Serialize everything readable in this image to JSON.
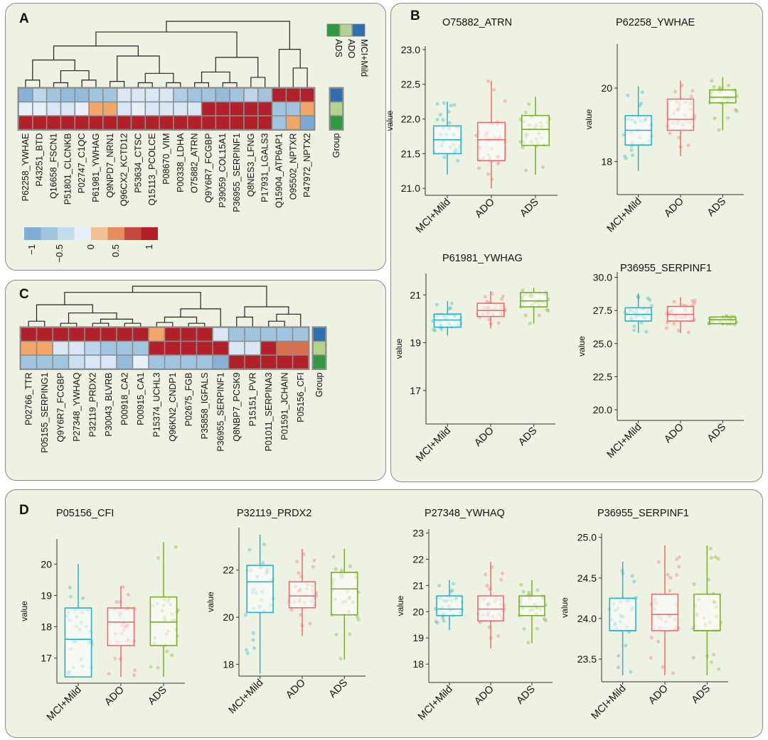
{
  "panels": {
    "a": "A",
    "b": "B",
    "c": "C",
    "d": "D"
  },
  "colors": {
    "mci": "#23b3c6",
    "ado": "#ee6b6b",
    "ads": "#79ad2a",
    "grp_mci": "#2e6fb3",
    "grp_ado": "#b4d48e",
    "grp_ads": "#2f9a3f"
  },
  "legend": {
    "mci": "MCI+Mild",
    "ado": "ADO",
    "ads": "ADS"
  },
  "chart_data": [
    {
      "id": "heatA",
      "type": "heatmap",
      "group_label": "Group",
      "columns": [
        "P62258_YWHAE",
        "P43251_BTD",
        "Q16658_FSCN1",
        "P51801_CLCNKB",
        "P02747_C1QC",
        "P61981_YWHAG",
        "Q9NPD7_NRN1",
        "Q96CX2_KCTD12",
        "P53634_CTSC",
        "Q15113_PCOLCE",
        "P08670_VIM",
        "P00338_LDHA",
        "O75882_ATRN",
        "Q9Y6R7_FCGBP",
        "P39059_COL15A1",
        "P36955_SERPINF1",
        "Q8NES3_LFNG",
        "P17931_LGALS3",
        "Q15904_ATP6AP1",
        "O95502_NPTXR",
        "P47972_NPTX2"
      ],
      "rows": [
        "MCI+Mild",
        "ADO",
        "ADS"
      ],
      "values": [
        [
          -0.8,
          -0.4,
          -0.6,
          -0.7,
          -0.7,
          -0.6,
          -0.6,
          -0.2,
          -0.2,
          -0.2,
          -0.2,
          -0.5,
          -0.6,
          -0.6,
          -0.7,
          -0.6,
          -0.4,
          -0.6,
          1,
          1,
          1
        ],
        [
          -0.1,
          -0.1,
          -0.2,
          -0.2,
          -0.1,
          0.5,
          0.5,
          -0.2,
          -0.1,
          -0.2,
          -0.2,
          -0.2,
          -0.2,
          1,
          1,
          1,
          1,
          1,
          -0.6,
          -0.6,
          0.5
        ],
        [
          1,
          1,
          1,
          1,
          1,
          1,
          1,
          1,
          1,
          1,
          1,
          1,
          1,
          1,
          1,
          1,
          1,
          1,
          -0.6,
          0.5,
          -0.9
        ]
      ],
      "colorbar": {
        "ticks": [
          "−1",
          "−0.5",
          "0",
          "0.5",
          "1"
        ]
      }
    },
    {
      "id": "heatC",
      "type": "heatmap",
      "group_label": "Group",
      "columns": [
        "P02766_TTR",
        "P05155_SERPING1",
        "Q9Y6R7_FCGBP",
        "P27348_YWHAQ",
        "P32119_PRDX2",
        "P30043_BLVRB",
        "P00918_CA2",
        "P00915_CA1",
        "P15374_UCHL3",
        "Q96KN2_CNDP1",
        "P02675_FGB",
        "P35858_IGFALS",
        "P36955_SERPINF1",
        "Q8NBP7_PCSK9",
        "P15151_PVR",
        "P01011_SERPINA3",
        "P01591_JCHAIN",
        "P05156_CFI"
      ],
      "rows": [
        "MCI+Mild",
        "ADO",
        "ADS"
      ],
      "values": [
        [
          1,
          1,
          1,
          1,
          1,
          1,
          1,
          1,
          0.5,
          1,
          1,
          1,
          -0.2,
          -0.6,
          -0.6,
          -0.6,
          -0.6,
          -0.6
        ],
        [
          0.5,
          0.5,
          -0.2,
          -0.2,
          -0.4,
          -0.6,
          -0.6,
          -0.6,
          1,
          1,
          1,
          1,
          1,
          -0.2,
          -0.2,
          1,
          0.7,
          0.7
        ],
        [
          -0.6,
          -0.6,
          -0.6,
          -0.3,
          -0.2,
          -0.2,
          -0.7,
          -0.1,
          -0.6,
          -0.6,
          -0.6,
          -0.6,
          -0.8,
          1,
          1,
          1,
          1,
          1
        ]
      ]
    },
    {
      "id": "b1",
      "type": "box",
      "title": "O75882_ATRN",
      "ylabel": "value",
      "categories": [
        "MCI+Mild",
        "ADO",
        "ADS"
      ],
      "ylim": [
        20.9,
        23.05
      ],
      "yticks": [
        "21.0",
        "21.5",
        "22.0",
        "22.5",
        "23.0"
      ],
      "boxes": [
        {
          "min": 21.2,
          "q1": 21.5,
          "median": 21.7,
          "q3": 21.9,
          "max": 22.25
        },
        {
          "min": 21.0,
          "q1": 21.4,
          "median": 21.7,
          "q3": 21.95,
          "max": 22.55
        },
        {
          "min": 21.2,
          "q1": 21.62,
          "median": 21.85,
          "q3": 22.05,
          "max": 22.32
        }
      ]
    },
    {
      "id": "b2",
      "type": "box",
      "title": "P62258_YWHAE",
      "ylabel": "value",
      "categories": [
        "MCI+Mild",
        "ADO",
        "ADS"
      ],
      "ylim": [
        17.1,
        21.2
      ],
      "yticks": [
        "18",
        "20"
      ],
      "boxes": [
        {
          "min": 17.75,
          "q1": 18.45,
          "median": 18.85,
          "q3": 19.25,
          "max": 20.05
        },
        {
          "min": 18.15,
          "q1": 18.85,
          "median": 19.15,
          "q3": 19.7,
          "max": 20.2
        },
        {
          "min": 18.85,
          "q1": 19.6,
          "median": 19.75,
          "q3": 19.95,
          "max": 20.3
        }
      ]
    },
    {
      "id": "b3",
      "type": "box",
      "title": "P61981_YWHAG",
      "ylabel": "value",
      "categories": [
        "MCI+Mild",
        "ADO",
        "ADS"
      ],
      "ylim": [
        15.6,
        21.9
      ],
      "yticks": [
        "17",
        "19",
        "21"
      ],
      "boxes": [
        {
          "min": 19.3,
          "q1": 19.65,
          "median": 19.95,
          "q3": 20.2,
          "max": 20.75
        },
        {
          "min": 19.6,
          "q1": 20.1,
          "median": 20.35,
          "q3": 20.65,
          "max": 21.15
        },
        {
          "min": 19.8,
          "q1": 20.5,
          "median": 20.75,
          "q3": 21.1,
          "max": 21.3
        }
      ]
    },
    {
      "id": "b4",
      "type": "box",
      "title": "P36955_SERPINF1",
      "ylabel": "value",
      "categories": [
        "MCI+Mild",
        "ADO",
        "ADS"
      ],
      "ylim": [
        19.2,
        30.4
      ],
      "yticks": [
        "20.0",
        "22.5",
        "25.0",
        "27.5",
        "30.0"
      ],
      "boxes": [
        {
          "min": 25.8,
          "q1": 26.7,
          "median": 27.2,
          "q3": 27.7,
          "max": 28.8
        },
        {
          "min": 25.8,
          "q1": 26.7,
          "median": 27.2,
          "q3": 27.8,
          "max": 28.5
        },
        {
          "min": 26.4,
          "q1": 26.5,
          "median": 26.8,
          "q3": 27.0,
          "max": 27.1
        }
      ]
    },
    {
      "id": "d1",
      "type": "box",
      "title": "P05156_CFI",
      "ylabel": "value",
      "categories": [
        "MCI+Mild",
        "ADO",
        "ADS"
      ],
      "ylim": [
        16.2,
        20.8
      ],
      "yticks": [
        "17",
        "18",
        "19",
        "20"
      ],
      "boxes": [
        {
          "min": 16.4,
          "q1": 16.4,
          "median": 17.6,
          "q3": 18.6,
          "max": 20.0
        },
        {
          "min": 16.4,
          "q1": 17.4,
          "median": 18.15,
          "q3": 18.6,
          "max": 19.3
        },
        {
          "min": 16.4,
          "q1": 17.4,
          "median": 18.15,
          "q3": 18.95,
          "max": 20.7
        }
      ]
    },
    {
      "id": "d2",
      "type": "box",
      "title": "P32119_PRDX2",
      "ylabel": "value",
      "categories": [
        "MCI+Mild",
        "ADO",
        "ADS"
      ],
      "ylim": [
        17.5,
        23.8
      ],
      "yticks": [
        "18",
        "20",
        "22"
      ],
      "boxes": [
        {
          "min": 17.6,
          "q1": 20.2,
          "median": 21.5,
          "q3": 22.2,
          "max": 23.5
        },
        {
          "min": 19.2,
          "q1": 20.4,
          "median": 20.9,
          "q3": 21.5,
          "max": 22.9
        },
        {
          "min": 18.2,
          "q1": 20.1,
          "median": 21.2,
          "q3": 21.9,
          "max": 22.9
        }
      ]
    },
    {
      "id": "d3",
      "type": "box",
      "title": "P27348_YWHAQ",
      "ylabel": "value",
      "categories": [
        "MCI+Mild",
        "ADO",
        "ADS"
      ],
      "ylim": [
        17.3,
        23.15
      ],
      "yticks": [
        "18",
        "19",
        "20",
        "21",
        "22",
        "23"
      ],
      "boxes": [
        {
          "min": 19.3,
          "q1": 19.85,
          "median": 20.1,
          "q3": 20.6,
          "max": 21.2
        },
        {
          "min": 18.6,
          "q1": 19.65,
          "median": 20.1,
          "q3": 20.6,
          "max": 21.9
        },
        {
          "min": 18.8,
          "q1": 19.85,
          "median": 20.2,
          "q3": 20.6,
          "max": 21.2
        }
      ]
    },
    {
      "id": "d4",
      "type": "box",
      "title": "P36955_SERPINF1",
      "ylabel": "value",
      "categories": [
        "MCI+Mild",
        "ADO",
        "ADS"
      ],
      "ylim": [
        23.22,
        25.05
      ],
      "yticks": [
        "23.5",
        "24.0",
        "24.5",
        "25.0"
      ],
      "boxes": [
        {
          "min": 23.3,
          "q1": 23.85,
          "median": 23.85,
          "q3": 24.25,
          "max": 24.7
        },
        {
          "min": 23.3,
          "q1": 23.85,
          "median": 24.05,
          "q3": 24.3,
          "max": 24.9
        },
        {
          "min": 23.3,
          "q1": 23.85,
          "median": 23.85,
          "q3": 24.3,
          "max": 24.9
        }
      ]
    }
  ]
}
